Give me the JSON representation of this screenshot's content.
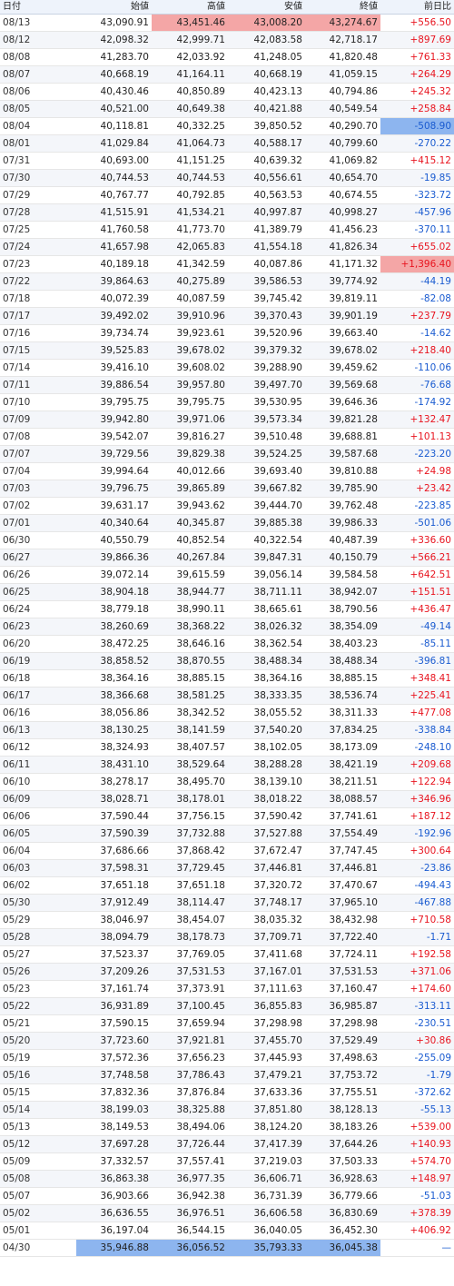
{
  "header": {
    "date": "日付",
    "open": "始値",
    "high": "高値",
    "low": "安値",
    "close": "終値",
    "change": "前日比"
  },
  "rows": [
    {
      "date": "08/13",
      "open": "43,090.91",
      "high": "43,451.46",
      "low": "43,008.20",
      "close": "43,274.67",
      "change": "+556.50",
      "dir": "pos",
      "hl": [
        "high",
        "low",
        "close"
      ]
    },
    {
      "date": "08/12",
      "open": "42,098.32",
      "high": "42,999.71",
      "low": "42,083.58",
      "close": "42,718.17",
      "change": "+897.69",
      "dir": "pos"
    },
    {
      "date": "08/08",
      "open": "41,283.70",
      "high": "42,033.92",
      "low": "41,248.05",
      "close": "41,820.48",
      "change": "+761.33",
      "dir": "pos"
    },
    {
      "date": "08/07",
      "open": "40,668.19",
      "high": "41,164.11",
      "low": "40,668.19",
      "close": "41,059.15",
      "change": "+264.29",
      "dir": "pos"
    },
    {
      "date": "08/06",
      "open": "40,430.46",
      "high": "40,850.89",
      "low": "40,423.13",
      "close": "40,794.86",
      "change": "+245.32",
      "dir": "pos"
    },
    {
      "date": "08/05",
      "open": "40,521.00",
      "high": "40,649.38",
      "low": "40,421.88",
      "close": "40,549.54",
      "change": "+258.84",
      "dir": "pos"
    },
    {
      "date": "08/04",
      "open": "40,118.81",
      "high": "40,332.25",
      "low": "39,850.52",
      "close": "40,290.70",
      "change": "-508.90",
      "dir": "neg",
      "hl": [
        "change"
      ]
    },
    {
      "date": "08/01",
      "open": "41,029.84",
      "high": "41,064.73",
      "low": "40,588.17",
      "close": "40,799.60",
      "change": "-270.22",
      "dir": "neg"
    },
    {
      "date": "07/31",
      "open": "40,693.00",
      "high": "41,151.25",
      "low": "40,639.32",
      "close": "41,069.82",
      "change": "+415.12",
      "dir": "pos"
    },
    {
      "date": "07/30",
      "open": "40,744.53",
      "high": "40,744.53",
      "low": "40,556.61",
      "close": "40,654.70",
      "change": "-19.85",
      "dir": "neg"
    },
    {
      "date": "07/29",
      "open": "40,767.77",
      "high": "40,792.85",
      "low": "40,563.53",
      "close": "40,674.55",
      "change": "-323.72",
      "dir": "neg"
    },
    {
      "date": "07/28",
      "open": "41,515.91",
      "high": "41,534.21",
      "low": "40,997.87",
      "close": "40,998.27",
      "change": "-457.96",
      "dir": "neg"
    },
    {
      "date": "07/25",
      "open": "41,760.58",
      "high": "41,773.70",
      "low": "41,389.79",
      "close": "41,456.23",
      "change": "-370.11",
      "dir": "neg"
    },
    {
      "date": "07/24",
      "open": "41,657.98",
      "high": "42,065.83",
      "low": "41,554.18",
      "close": "41,826.34",
      "change": "+655.02",
      "dir": "pos"
    },
    {
      "date": "07/23",
      "open": "40,189.18",
      "high": "41,342.59",
      "low": "40,087.86",
      "close": "41,171.32",
      "change": "+1,396.40",
      "dir": "pos",
      "hl": [
        "change"
      ]
    },
    {
      "date": "07/22",
      "open": "39,864.63",
      "high": "40,275.89",
      "low": "39,586.53",
      "close": "39,774.92",
      "change": "-44.19",
      "dir": "neg"
    },
    {
      "date": "07/18",
      "open": "40,072.39",
      "high": "40,087.59",
      "low": "39,745.42",
      "close": "39,819.11",
      "change": "-82.08",
      "dir": "neg"
    },
    {
      "date": "07/17",
      "open": "39,492.02",
      "high": "39,910.96",
      "low": "39,370.43",
      "close": "39,901.19",
      "change": "+237.79",
      "dir": "pos"
    },
    {
      "date": "07/16",
      "open": "39,734.74",
      "high": "39,923.61",
      "low": "39,520.96",
      "close": "39,663.40",
      "change": "-14.62",
      "dir": "neg"
    },
    {
      "date": "07/15",
      "open": "39,525.83",
      "high": "39,678.02",
      "low": "39,379.32",
      "close": "39,678.02",
      "change": "+218.40",
      "dir": "pos"
    },
    {
      "date": "07/14",
      "open": "39,416.10",
      "high": "39,608.02",
      "low": "39,288.90",
      "close": "39,459.62",
      "change": "-110.06",
      "dir": "neg"
    },
    {
      "date": "07/11",
      "open": "39,886.54",
      "high": "39,957.80",
      "low": "39,497.70",
      "close": "39,569.68",
      "change": "-76.68",
      "dir": "neg"
    },
    {
      "date": "07/10",
      "open": "39,795.75",
      "high": "39,795.75",
      "low": "39,530.95",
      "close": "39,646.36",
      "change": "-174.92",
      "dir": "neg"
    },
    {
      "date": "07/09",
      "open": "39,942.80",
      "high": "39,971.06",
      "low": "39,573.34",
      "close": "39,821.28",
      "change": "+132.47",
      "dir": "pos"
    },
    {
      "date": "07/08",
      "open": "39,542.07",
      "high": "39,816.27",
      "low": "39,510.48",
      "close": "39,688.81",
      "change": "+101.13",
      "dir": "pos"
    },
    {
      "date": "07/07",
      "open": "39,729.56",
      "high": "39,829.38",
      "low": "39,524.25",
      "close": "39,587.68",
      "change": "-223.20",
      "dir": "neg"
    },
    {
      "date": "07/04",
      "open": "39,994.64",
      "high": "40,012.66",
      "low": "39,693.40",
      "close": "39,810.88",
      "change": "+24.98",
      "dir": "pos"
    },
    {
      "date": "07/03",
      "open": "39,796.75",
      "high": "39,865.89",
      "low": "39,667.82",
      "close": "39,785.90",
      "change": "+23.42",
      "dir": "pos"
    },
    {
      "date": "07/02",
      "open": "39,631.17",
      "high": "39,943.62",
      "low": "39,444.70",
      "close": "39,762.48",
      "change": "-223.85",
      "dir": "neg"
    },
    {
      "date": "07/01",
      "open": "40,340.64",
      "high": "40,345.87",
      "low": "39,885.38",
      "close": "39,986.33",
      "change": "-501.06",
      "dir": "neg"
    },
    {
      "date": "06/30",
      "open": "40,550.79",
      "high": "40,852.54",
      "low": "40,322.54",
      "close": "40,487.39",
      "change": "+336.60",
      "dir": "pos"
    },
    {
      "date": "06/27",
      "open": "39,866.36",
      "high": "40,267.84",
      "low": "39,847.31",
      "close": "40,150.79",
      "change": "+566.21",
      "dir": "pos"
    },
    {
      "date": "06/26",
      "open": "39,072.14",
      "high": "39,615.59",
      "low": "39,056.14",
      "close": "39,584.58",
      "change": "+642.51",
      "dir": "pos"
    },
    {
      "date": "06/25",
      "open": "38,904.18",
      "high": "38,944.77",
      "low": "38,711.11",
      "close": "38,942.07",
      "change": "+151.51",
      "dir": "pos"
    },
    {
      "date": "06/24",
      "open": "38,779.18",
      "high": "38,990.11",
      "low": "38,665.61",
      "close": "38,790.56",
      "change": "+436.47",
      "dir": "pos"
    },
    {
      "date": "06/23",
      "open": "38,260.69",
      "high": "38,368.22",
      "low": "38,026.32",
      "close": "38,354.09",
      "change": "-49.14",
      "dir": "neg"
    },
    {
      "date": "06/20",
      "open": "38,472.25",
      "high": "38,646.16",
      "low": "38,362.54",
      "close": "38,403.23",
      "change": "-85.11",
      "dir": "neg"
    },
    {
      "date": "06/19",
      "open": "38,858.52",
      "high": "38,870.55",
      "low": "38,488.34",
      "close": "38,488.34",
      "change": "-396.81",
      "dir": "neg"
    },
    {
      "date": "06/18",
      "open": "38,364.16",
      "high": "38,885.15",
      "low": "38,364.16",
      "close": "38,885.15",
      "change": "+348.41",
      "dir": "pos"
    },
    {
      "date": "06/17",
      "open": "38,366.68",
      "high": "38,581.25",
      "low": "38,333.35",
      "close": "38,536.74",
      "change": "+225.41",
      "dir": "pos"
    },
    {
      "date": "06/16",
      "open": "38,056.86",
      "high": "38,342.52",
      "low": "38,055.52",
      "close": "38,311.33",
      "change": "+477.08",
      "dir": "pos"
    },
    {
      "date": "06/13",
      "open": "38,130.25",
      "high": "38,141.59",
      "low": "37,540.20",
      "close": "37,834.25",
      "change": "-338.84",
      "dir": "neg"
    },
    {
      "date": "06/12",
      "open": "38,324.93",
      "high": "38,407.57",
      "low": "38,102.05",
      "close": "38,173.09",
      "change": "-248.10",
      "dir": "neg"
    },
    {
      "date": "06/11",
      "open": "38,431.10",
      "high": "38,529.64",
      "low": "38,288.28",
      "close": "38,421.19",
      "change": "+209.68",
      "dir": "pos"
    },
    {
      "date": "06/10",
      "open": "38,278.17",
      "high": "38,495.70",
      "low": "38,139.10",
      "close": "38,211.51",
      "change": "+122.94",
      "dir": "pos"
    },
    {
      "date": "06/09",
      "open": "38,028.71",
      "high": "38,178.01",
      "low": "38,018.22",
      "close": "38,088.57",
      "change": "+346.96",
      "dir": "pos"
    },
    {
      "date": "06/06",
      "open": "37,590.44",
      "high": "37,756.15",
      "low": "37,590.42",
      "close": "37,741.61",
      "change": "+187.12",
      "dir": "pos"
    },
    {
      "date": "06/05",
      "open": "37,590.39",
      "high": "37,732.88",
      "low": "37,527.88",
      "close": "37,554.49",
      "change": "-192.96",
      "dir": "neg"
    },
    {
      "date": "06/04",
      "open": "37,686.66",
      "high": "37,868.42",
      "low": "37,672.47",
      "close": "37,747.45",
      "change": "+300.64",
      "dir": "pos"
    },
    {
      "date": "06/03",
      "open": "37,598.31",
      "high": "37,729.45",
      "low": "37,446.81",
      "close": "37,446.81",
      "change": "-23.86",
      "dir": "neg"
    },
    {
      "date": "06/02",
      "open": "37,651.18",
      "high": "37,651.18",
      "low": "37,320.72",
      "close": "37,470.67",
      "change": "-494.43",
      "dir": "neg"
    },
    {
      "date": "05/30",
      "open": "37,912.49",
      "high": "38,114.47",
      "low": "37,748.17",
      "close": "37,965.10",
      "change": "-467.88",
      "dir": "neg"
    },
    {
      "date": "05/29",
      "open": "38,046.97",
      "high": "38,454.07",
      "low": "38,035.32",
      "close": "38,432.98",
      "change": "+710.58",
      "dir": "pos"
    },
    {
      "date": "05/28",
      "open": "38,094.79",
      "high": "38,178.73",
      "low": "37,709.71",
      "close": "37,722.40",
      "change": "-1.71",
      "dir": "neg"
    },
    {
      "date": "05/27",
      "open": "37,523.37",
      "high": "37,769.05",
      "low": "37,411.68",
      "close": "37,724.11",
      "change": "+192.58",
      "dir": "pos"
    },
    {
      "date": "05/26",
      "open": "37,209.26",
      "high": "37,531.53",
      "low": "37,167.01",
      "close": "37,531.53",
      "change": "+371.06",
      "dir": "pos"
    },
    {
      "date": "05/23",
      "open": "37,161.74",
      "high": "37,373.91",
      "low": "37,111.63",
      "close": "37,160.47",
      "change": "+174.60",
      "dir": "pos"
    },
    {
      "date": "05/22",
      "open": "36,931.89",
      "high": "37,100.45",
      "low": "36,855.83",
      "close": "36,985.87",
      "change": "-313.11",
      "dir": "neg"
    },
    {
      "date": "05/21",
      "open": "37,590.15",
      "high": "37,659.94",
      "low": "37,298.98",
      "close": "37,298.98",
      "change": "-230.51",
      "dir": "neg"
    },
    {
      "date": "05/20",
      "open": "37,723.60",
      "high": "37,921.81",
      "low": "37,455.70",
      "close": "37,529.49",
      "change": "+30.86",
      "dir": "pos"
    },
    {
      "date": "05/19",
      "open": "37,572.36",
      "high": "37,656.23",
      "low": "37,445.93",
      "close": "37,498.63",
      "change": "-255.09",
      "dir": "neg"
    },
    {
      "date": "05/16",
      "open": "37,748.58",
      "high": "37,786.43",
      "low": "37,479.21",
      "close": "37,753.72",
      "change": "-1.79",
      "dir": "neg"
    },
    {
      "date": "05/15",
      "open": "37,832.36",
      "high": "37,876.84",
      "low": "37,633.36",
      "close": "37,755.51",
      "change": "-372.62",
      "dir": "neg"
    },
    {
      "date": "05/14",
      "open": "38,199.03",
      "high": "38,325.88",
      "low": "37,851.80",
      "close": "38,128.13",
      "change": "-55.13",
      "dir": "neg"
    },
    {
      "date": "05/13",
      "open": "38,149.53",
      "high": "38,494.06",
      "low": "38,124.20",
      "close": "38,183.26",
      "change": "+539.00",
      "dir": "pos"
    },
    {
      "date": "05/12",
      "open": "37,697.28",
      "high": "37,726.44",
      "low": "37,417.39",
      "close": "37,644.26",
      "change": "+140.93",
      "dir": "pos"
    },
    {
      "date": "05/09",
      "open": "37,332.57",
      "high": "37,557.41",
      "low": "37,219.03",
      "close": "37,503.33",
      "change": "+574.70",
      "dir": "pos"
    },
    {
      "date": "05/08",
      "open": "36,863.38",
      "high": "36,977.35",
      "low": "36,606.71",
      "close": "36,928.63",
      "change": "+148.97",
      "dir": "pos"
    },
    {
      "date": "05/07",
      "open": "36,903.66",
      "high": "36,942.38",
      "low": "36,731.39",
      "close": "36,779.66",
      "change": "-51.03",
      "dir": "neg"
    },
    {
      "date": "05/02",
      "open": "36,636.55",
      "high": "36,976.51",
      "low": "36,606.58",
      "close": "36,830.69",
      "change": "+378.39",
      "dir": "pos"
    },
    {
      "date": "05/01",
      "open": "36,197.04",
      "high": "36,544.15",
      "low": "36,040.05",
      "close": "36,452.30",
      "change": "+406.92",
      "dir": "pos"
    },
    {
      "date": "04/30",
      "open": "35,946.88",
      "high": "36,056.52",
      "low": "35,793.33",
      "close": "36,045.38",
      "change": "—",
      "dir": "flat",
      "hl": [
        "open",
        "high",
        "low",
        "close"
      ]
    }
  ],
  "colors": {
    "up": "#e8141f",
    "down": "#1a5bd0",
    "highlight_red": "#f4a6a6",
    "highlight_blue": "#8db5ef",
    "header_bg": "#eef3fb"
  }
}
